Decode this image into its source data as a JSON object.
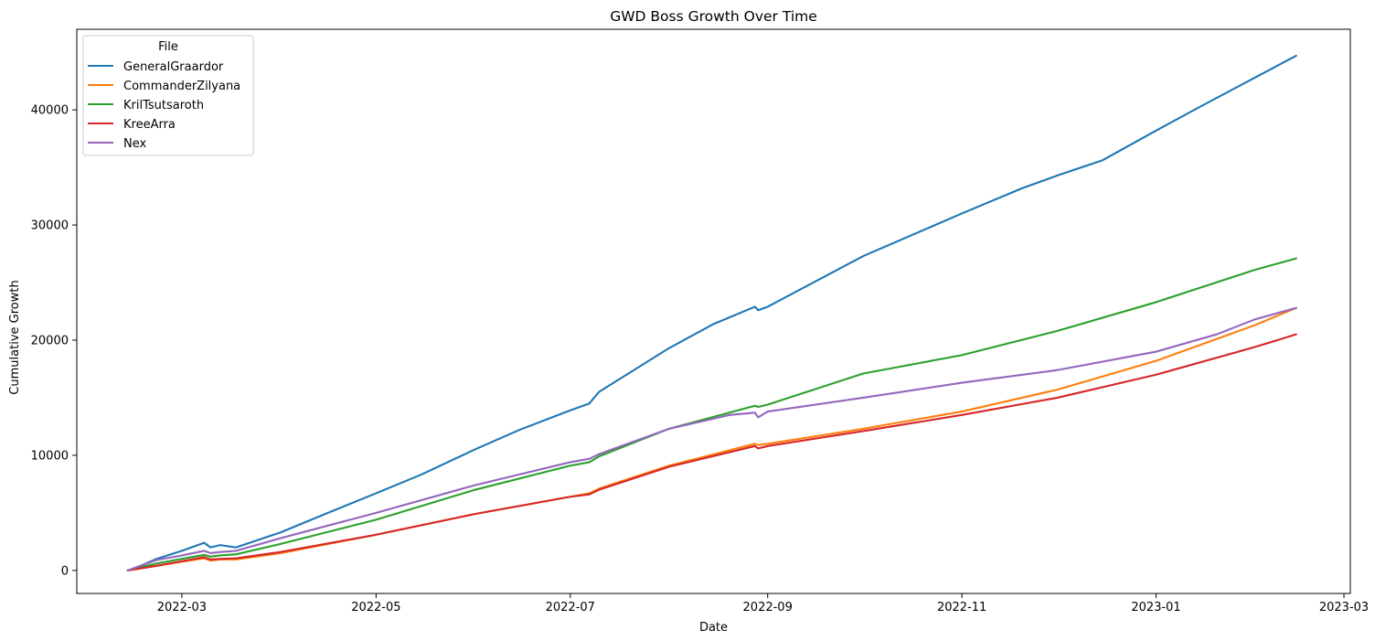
{
  "chart_data": {
    "type": "line",
    "title": "GWD Boss Growth Over Time",
    "xlabel": "Date",
    "ylabel": "Cumulative Growth",
    "ylim": [
      -2000,
      47000
    ],
    "xlim": [
      "2022-01-27",
      "2023-03-03"
    ],
    "x_ticks": [
      "2022-03-01",
      "2022-05-01",
      "2022-07-01",
      "2022-09-01",
      "2022-11-01",
      "2023-01-01",
      "2023-03-01"
    ],
    "x_tick_labels": [
      "2022-03",
      "2022-05",
      "2022-07",
      "2022-09",
      "2022-11",
      "2023-01",
      "2023-03"
    ],
    "y_ticks": [
      0,
      10000,
      20000,
      30000,
      40000
    ],
    "y_tick_labels": [
      "0",
      "10000",
      "20000",
      "30000",
      "40000"
    ],
    "grid": false,
    "legend": {
      "title": "File",
      "placement": "top-left"
    },
    "series": [
      {
        "name": "GeneralGraardor",
        "color": "#1f77b4",
        "x": [
          "2022-02-12",
          "2022-02-16",
          "2022-02-21",
          "2022-03-01",
          "2022-03-08",
          "2022-03-10",
          "2022-03-13",
          "2022-03-18",
          "2022-04-01",
          "2022-04-15",
          "2022-05-01",
          "2022-05-15",
          "2022-06-01",
          "2022-06-15",
          "2022-07-01",
          "2022-07-07",
          "2022-07-10",
          "2022-08-01",
          "2022-08-15",
          "2022-08-28",
          "2022-08-29",
          "2022-09-01",
          "2022-10-01",
          "2022-11-01",
          "2022-11-20",
          "2022-12-01",
          "2022-12-15",
          "2023-01-01",
          "2023-01-15",
          "2023-02-01",
          "2023-02-14"
        ],
        "y": [
          0,
          400,
          1000,
          1700,
          2400,
          2000,
          2200,
          2000,
          3300,
          4900,
          6700,
          8300,
          10500,
          12200,
          13900,
          14500,
          15500,
          19300,
          21400,
          22900,
          22600,
          22900,
          27300,
          31000,
          33200,
          34300,
          35600,
          38200,
          40300,
          42800,
          44700
        ]
      },
      {
        "name": "CommanderZilyana",
        "color": "#ff7f0e",
        "x": [
          "2022-02-12",
          "2022-02-21",
          "2022-03-01",
          "2022-03-08",
          "2022-03-10",
          "2022-03-13",
          "2022-03-18",
          "2022-04-01",
          "2022-05-01",
          "2022-06-01",
          "2022-07-01",
          "2022-07-07",
          "2022-07-10",
          "2022-08-01",
          "2022-08-28",
          "2022-08-29",
          "2022-09-01",
          "2022-10-01",
          "2022-11-01",
          "2022-12-01",
          "2023-01-01",
          "2023-02-01",
          "2023-02-14"
        ],
        "y": [
          0,
          400,
          750,
          1050,
          850,
          950,
          950,
          1500,
          3100,
          4900,
          6400,
          6700,
          7100,
          9100,
          11000,
          10900,
          11000,
          12300,
          13800,
          15700,
          18200,
          21300,
          22800
        ]
      },
      {
        "name": "KrilTsutsaroth",
        "color": "#2ca02c",
        "x": [
          "2022-02-12",
          "2022-02-21",
          "2022-03-01",
          "2022-03-08",
          "2022-03-10",
          "2022-03-13",
          "2022-03-18",
          "2022-04-01",
          "2022-05-01",
          "2022-06-01",
          "2022-07-01",
          "2022-07-07",
          "2022-07-10",
          "2022-08-01",
          "2022-08-28",
          "2022-08-29",
          "2022-09-01",
          "2022-10-01",
          "2022-11-01",
          "2022-12-01",
          "2023-01-01",
          "2023-02-01",
          "2023-02-14"
        ],
        "y": [
          0,
          600,
          1000,
          1350,
          1200,
          1300,
          1400,
          2300,
          4400,
          7000,
          9100,
          9400,
          9900,
          12300,
          14300,
          14200,
          14400,
          17100,
          18700,
          20800,
          23300,
          26100,
          27100
        ]
      },
      {
        "name": "KreeArra",
        "color": "#d62728",
        "x": [
          "2022-02-12",
          "2022-02-21",
          "2022-03-01",
          "2022-03-08",
          "2022-03-10",
          "2022-03-13",
          "2022-03-18",
          "2022-04-01",
          "2022-05-01",
          "2022-06-01",
          "2022-07-01",
          "2022-07-07",
          "2022-07-10",
          "2022-08-01",
          "2022-08-28",
          "2022-08-29",
          "2022-09-01",
          "2022-10-01",
          "2022-11-01",
          "2022-12-01",
          "2023-01-01",
          "2023-02-01",
          "2023-02-14"
        ],
        "y": [
          0,
          400,
          800,
          1150,
          950,
          1000,
          1050,
          1600,
          3100,
          4900,
          6400,
          6600,
          7000,
          9000,
          10800,
          10600,
          10800,
          12100,
          13500,
          15000,
          17000,
          19400,
          20500
        ]
      },
      {
        "name": "Nex",
        "color": "#9467bd",
        "x": [
          "2022-02-12",
          "2022-02-21",
          "2022-03-01",
          "2022-03-08",
          "2022-03-10",
          "2022-03-13",
          "2022-03-18",
          "2022-04-01",
          "2022-05-01",
          "2022-06-01",
          "2022-07-01",
          "2022-07-07",
          "2022-07-10",
          "2022-08-01",
          "2022-08-20",
          "2022-08-28",
          "2022-08-29",
          "2022-09-01",
          "2022-10-01",
          "2022-11-01",
          "2022-12-01",
          "2023-01-01",
          "2023-01-20",
          "2023-02-01",
          "2023-02-14"
        ],
        "y": [
          0,
          900,
          1300,
          1700,
          1500,
          1600,
          1700,
          2800,
          5000,
          7400,
          9400,
          9700,
          10100,
          12300,
          13500,
          13700,
          13300,
          13800,
          15000,
          16300,
          17400,
          19000,
          20500,
          21800,
          22800
        ]
      }
    ]
  }
}
